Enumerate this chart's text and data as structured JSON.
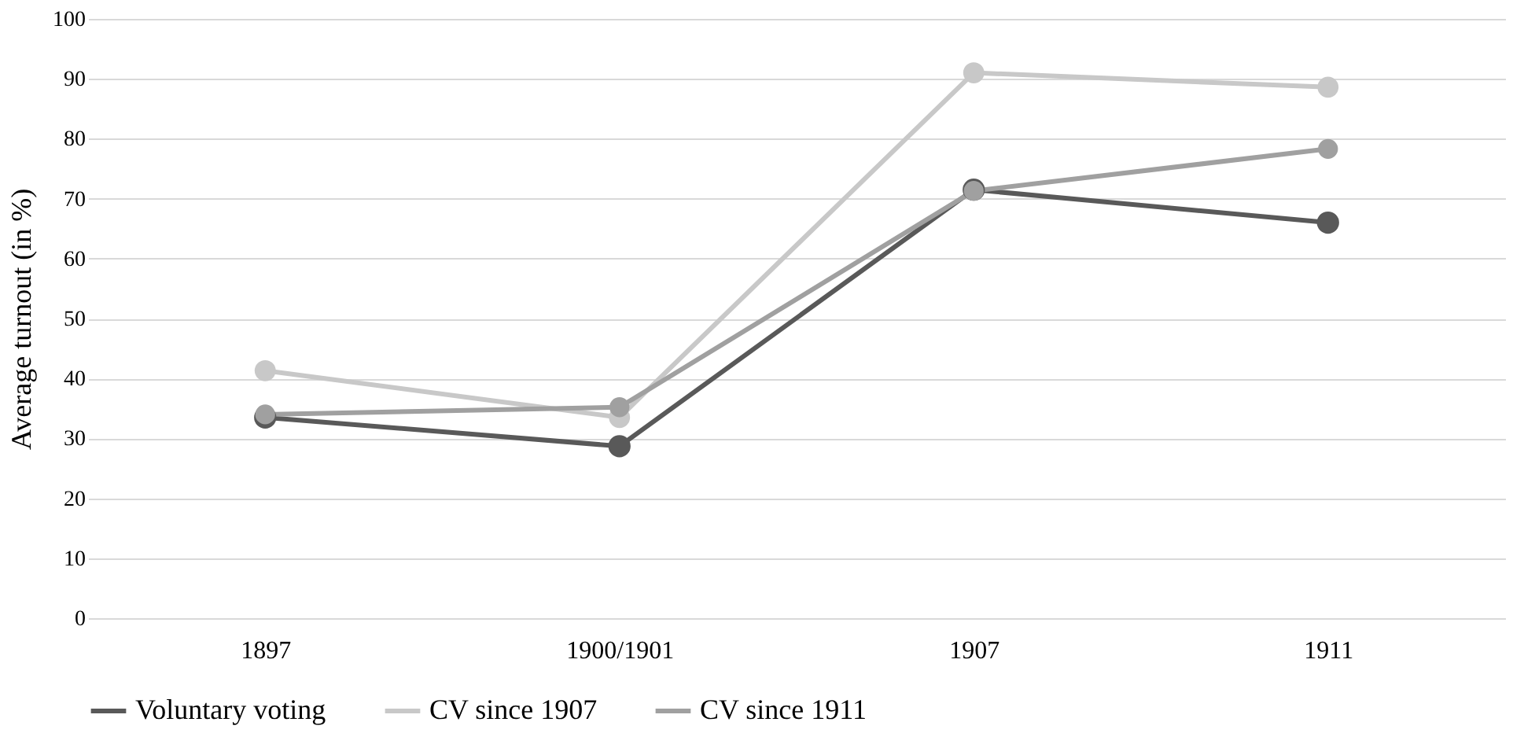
{
  "chart_data": {
    "type": "line",
    "ylabel": "Average turnout  (in %)",
    "categories": [
      "1897",
      "1900/1901",
      "1907",
      "1911"
    ],
    "series": [
      {
        "name": "Voluntary voting",
        "color": "#595959",
        "values": [
          33.5,
          28.7,
          71.5,
          66
        ]
      },
      {
        "name": "CV since 1907",
        "color": "#c8c8c8",
        "values": [
          41.3,
          33.5,
          91,
          88.6
        ]
      },
      {
        "name": "CV since 1911",
        "color": "#a0a0a0",
        "values": [
          34,
          35.2,
          71.3,
          78.3
        ]
      }
    ],
    "ylim": [
      0,
      100
    ],
    "yticks": [
      0,
      10,
      20,
      30,
      40,
      50,
      60,
      70,
      80,
      90,
      100
    ],
    "grid": "y",
    "legend": "bottom",
    "marker": "circle",
    "line_style": "solid"
  }
}
